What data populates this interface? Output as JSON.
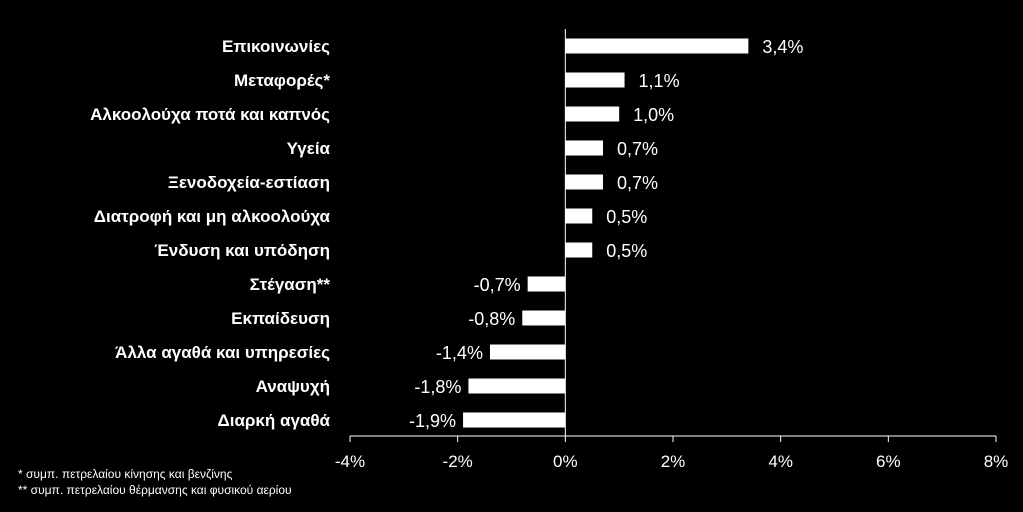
{
  "chart_data": {
    "type": "bar",
    "orientation": "horizontal",
    "categories": [
      "Επικοινωνίες",
      "Μεταφορές*",
      "Αλκοολούχα ποτά και καπνός",
      "Υγεία",
      "Ξενοδοχεία-εστίαση",
      "Διατροφή και μη αλκοολούχα",
      "Ένδυση και υπόδηση",
      "Στέγαση**",
      "Εκπαίδευση",
      "Άλλα αγαθά και υπηρεσίες",
      "Αναψυχή",
      "Διαρκή αγαθά"
    ],
    "values": [
      3.4,
      1.1,
      1.0,
      0.7,
      0.7,
      0.5,
      0.5,
      -0.7,
      -0.8,
      -1.4,
      -1.8,
      -1.9
    ],
    "value_labels": [
      "3,4%",
      "1,1%",
      "1,0%",
      "0,7%",
      "0,7%",
      "0,5%",
      "0,5%",
      "-0,7%",
      "-0,8%",
      "-1,4%",
      "-1,8%",
      "-1,9%"
    ],
    "xlim": [
      -4,
      8
    ],
    "x_ticks": [
      -4,
      -2,
      0,
      2,
      4,
      6,
      8
    ],
    "x_tick_labels": [
      "-4%",
      "-2%",
      "0%",
      "2%",
      "4%",
      "6%",
      "8%"
    ],
    "grid": false,
    "legend": "none",
    "bar_color": "#ffffff",
    "background_color": "#000000"
  },
  "footnotes": [
    "* συμπ. πετρελαίου κίνησης και βενζίνης",
    "** συμπ. πετρελαίου θέρμανσης και φυσικού αερίου"
  ]
}
